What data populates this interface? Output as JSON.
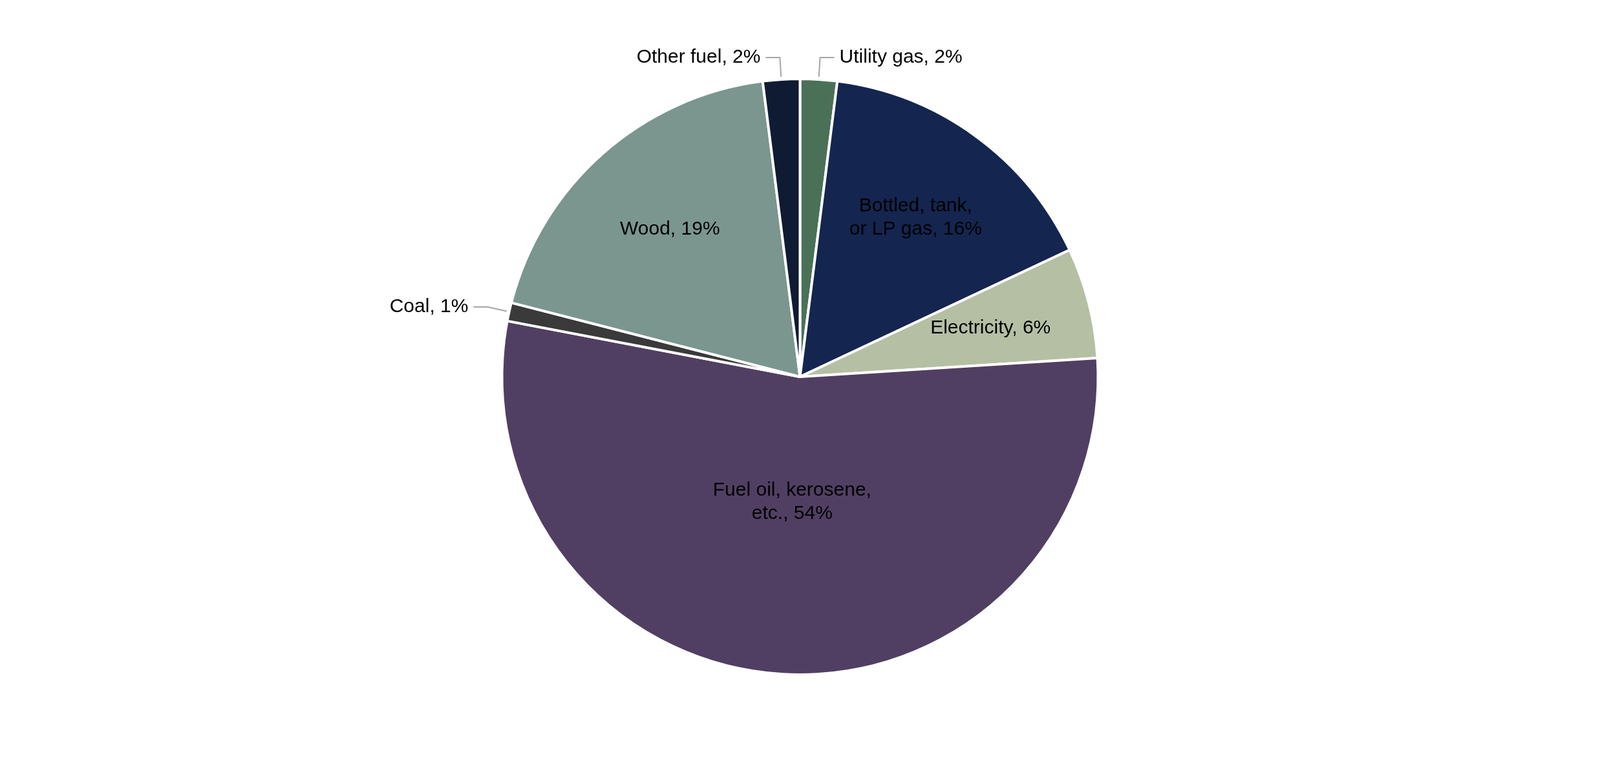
{
  "chart_data": {
    "type": "pie",
    "categories": [
      "Utility gas",
      "Bottled, tank, or LP gas",
      "Electricity",
      "Fuel oil, kerosene, etc.",
      "Coal",
      "Wood",
      "Other fuel"
    ],
    "values": [
      2,
      16,
      6,
      54,
      1,
      19,
      2
    ],
    "value_labels": [
      "Utility gas, 2%",
      "Bottled, tank, or LP gas, 16%",
      "Electricity, 6%",
      "Fuel oil, kerosene, etc., 54%",
      "Coal, 1%",
      "Wood, 19%",
      "Other fuel, 2%"
    ],
    "colors": [
      "#4a7158",
      "#14254f",
      "#b5bfa4",
      "#513f63",
      "#3a3a3a",
      "#7a968f",
      "#0f1b33"
    ],
    "data_labels": true
  }
}
